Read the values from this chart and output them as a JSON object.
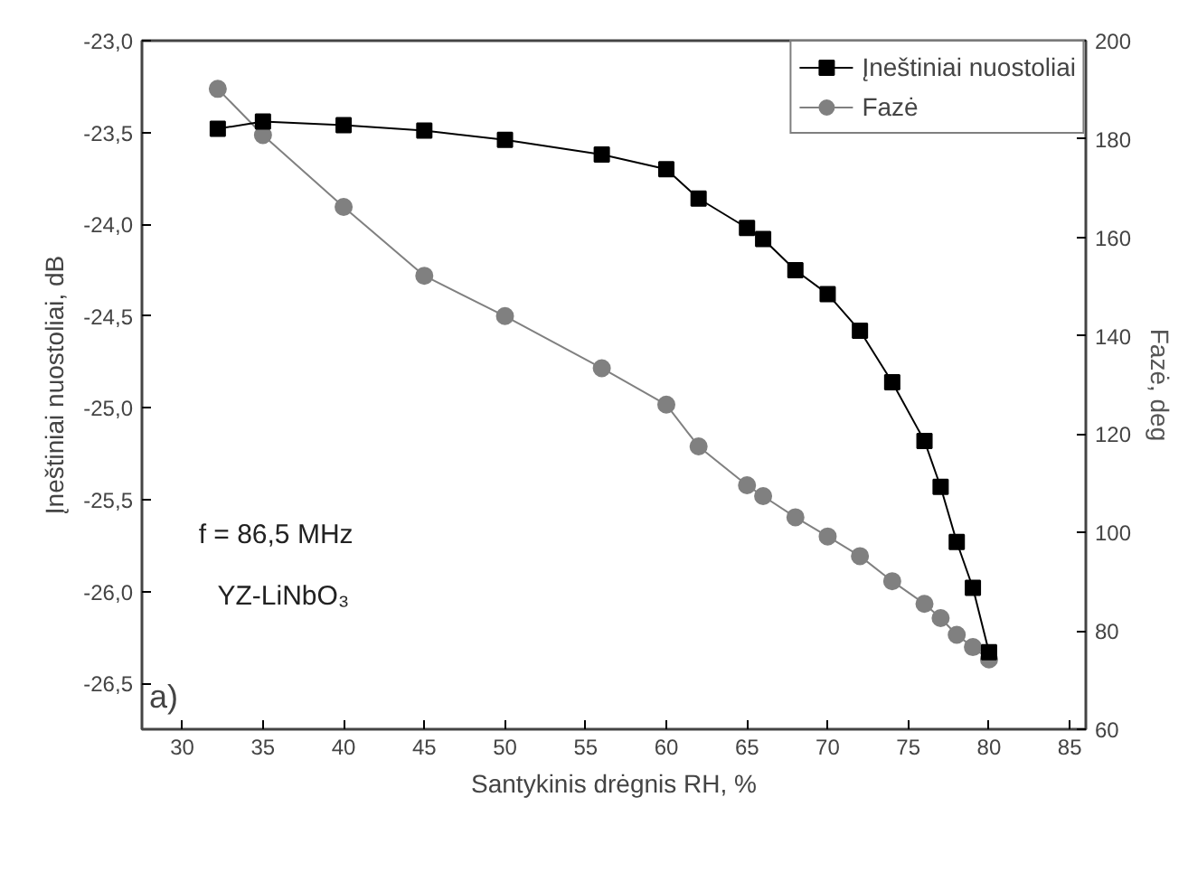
{
  "chart_data": {
    "type": "line",
    "xlabel": "Santykinis drėgnis RH, %",
    "ylabel": "Įneštiniai nuostoliai, dB",
    "y2label": "Fazė, deg",
    "x": [
      32.2,
      35,
      40,
      45,
      50,
      56,
      60,
      62,
      65,
      66,
      68,
      70,
      72,
      74,
      76,
      77,
      78,
      79,
      80
    ],
    "series": [
      {
        "name": "Įneštiniai nuostoliai",
        "color": "#000000",
        "marker": "square",
        "values": [
          -23.48,
          -23.44,
          -23.46,
          -23.49,
          -23.54,
          -23.62,
          -23.7,
          -23.86,
          -24.02,
          -24.08,
          -24.25,
          -24.38,
          -24.58,
          -24.86,
          -25.18,
          -25.43,
          -25.73,
          -25.98,
          -26.33
        ]
      },
      {
        "name": "Fazė",
        "color": "#808080",
        "marker": "circle",
        "axis": "y2",
        "values": [
          190.2,
          180.8,
          166.2,
          152.2,
          144.0,
          133.4,
          126.0,
          117.5,
          109.6,
          107.4,
          103.1,
          99.2,
          95.2,
          90.1,
          85.5,
          82.6,
          79.2,
          76.7,
          74.2
        ]
      }
    ],
    "xlim": [
      27.5,
      86
    ],
    "xticks": [
      30,
      35,
      40,
      45,
      50,
      55,
      60,
      65,
      70,
      75,
      80,
      85
    ],
    "ylim": [
      -26.75,
      -23.0
    ],
    "yticks": [
      {
        "value": -26.5,
        "label": "-26,5"
      },
      {
        "value": -26.0,
        "label": "-26,0"
      },
      {
        "value": -25.5,
        "label": "-25,5"
      },
      {
        "value": -25.0,
        "label": "-25,0"
      },
      {
        "value": -24.5,
        "label": "-24,5"
      },
      {
        "value": -24.0,
        "label": "-24,0"
      },
      {
        "value": -23.5,
        "label": "-23,5"
      },
      {
        "value": -23.0,
        "label": "-23,0"
      }
    ],
    "y2lim": [
      60,
      200
    ],
    "y2ticks": [
      60,
      80,
      100,
      120,
      140,
      160,
      180,
      200
    ],
    "grid": false,
    "legend": "top right",
    "line_style": "solid",
    "annotations": [
      "f = 86,5 MHz",
      "YZ-LiNbO₃",
      "a)"
    ]
  }
}
